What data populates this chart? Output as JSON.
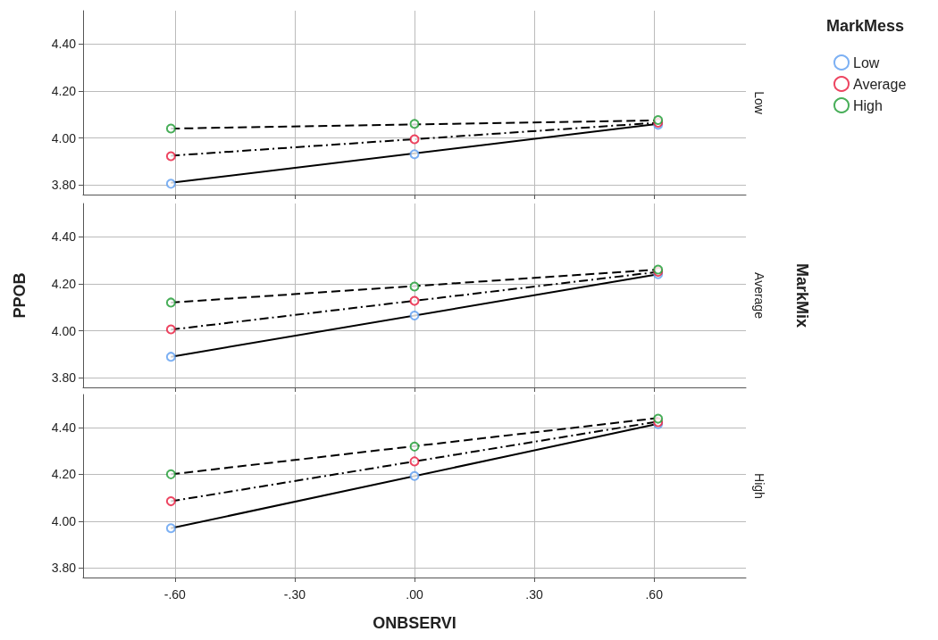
{
  "chart_data": [
    {
      "type": "scatter",
      "legend_title": "MarkMess",
      "legend": "top right",
      "grid": true,
      "marker": "circle",
      "tick_labels": "y",
      "annotations": [
        "Low"
      ],
      "xlim": [
        -0.83,
        0.83
      ],
      "xticks": [
        {
          "value": -0.6,
          "label": null
        },
        {
          "value": -0.3,
          "label": null
        },
        {
          "value": 0,
          "label": null
        },
        {
          "value": 0.3,
          "label": null
        },
        {
          "value": 0.6,
          "label": null
        }
      ],
      "ylim": [
        3.76,
        4.54
      ],
      "yticks": [
        {
          "value": 3.8,
          "label": "3.80"
        },
        {
          "value": 4.0,
          "label": "4.00"
        },
        {
          "value": 4.2,
          "label": "4.20"
        },
        {
          "value": 4.4,
          "label": "4.40"
        }
      ],
      "series": [
        {
          "type": "line",
          "marker": "none",
          "color": "#000000",
          "line_style": "solid",
          "x": [
            -0.61,
            0.61
          ],
          "values": [
            3.81,
            4.06
          ]
        },
        {
          "type": "line",
          "marker": "none",
          "color": "#000000",
          "line_style": "dotted",
          "x": [
            -0.61,
            0.61
          ],
          "values": [
            3.925,
            4.065
          ]
        },
        {
          "type": "line",
          "marker": "none",
          "color": "#000000",
          "line_style": "dashed",
          "x": [
            -0.61,
            0.61
          ],
          "values": [
            4.04,
            4.075
          ]
        },
        {
          "name": "Low",
          "color": "#5b9cf0",
          "x": [
            -0.61,
            0,
            0.61
          ],
          "values": [
            3.806,
            3.931,
            4.056
          ]
        },
        {
          "name": "Average",
          "color": "#e8173a",
          "x": [
            -0.61,
            0,
            0.61
          ],
          "values": [
            3.923,
            3.995,
            4.065
          ]
        },
        {
          "name": "High",
          "color": "#1a9a30",
          "x": [
            -0.61,
            0,
            0.61
          ],
          "values": [
            4.04,
            4.06,
            4.076
          ]
        }
      ]
    },
    {
      "type": "scatter",
      "ylabel": "PPOB",
      "grid": true,
      "marker": "circle",
      "tick_labels": "y",
      "annotations": [
        "Average",
        "MarkMix"
      ],
      "xlim": [
        -0.83,
        0.83
      ],
      "xticks": [
        {
          "value": -0.6,
          "label": null
        },
        {
          "value": -0.3,
          "label": null
        },
        {
          "value": 0,
          "label": null
        },
        {
          "value": 0.3,
          "label": null
        },
        {
          "value": 0.6,
          "label": null
        }
      ],
      "ylim": [
        3.76,
        4.54
      ],
      "yticks": [
        {
          "value": 3.8,
          "label": "3.80"
        },
        {
          "value": 4.0,
          "label": "4.00"
        },
        {
          "value": 4.2,
          "label": "4.20"
        },
        {
          "value": 4.4,
          "label": "4.40"
        }
      ],
      "series": [
        {
          "type": "line",
          "marker": "none",
          "color": "#000000",
          "line_style": "solid",
          "x": [
            -0.61,
            0.61
          ],
          "values": [
            3.89,
            4.24
          ]
        },
        {
          "type": "line",
          "marker": "none",
          "color": "#000000",
          "line_style": "dotted",
          "x": [
            -0.61,
            0.61
          ],
          "values": [
            4.005,
            4.25
          ]
        },
        {
          "type": "line",
          "marker": "none",
          "color": "#000000",
          "line_style": "dashed",
          "x": [
            -0.61,
            0.61
          ],
          "values": [
            4.12,
            4.26
          ]
        },
        {
          "color": "#5b9cf0",
          "x": [
            -0.61,
            0,
            0.61
          ],
          "values": [
            3.89,
            4.065,
            4.24
          ]
        },
        {
          "color": "#e8173a",
          "x": [
            -0.61,
            0,
            0.61
          ],
          "values": [
            4.006,
            4.127,
            4.25
          ]
        },
        {
          "color": "#1a9a30",
          "x": [
            -0.61,
            0,
            0.61
          ],
          "values": [
            4.12,
            4.188,
            4.26
          ]
        }
      ]
    },
    {
      "type": "scatter",
      "xlabel": "ONBSERVI",
      "grid": true,
      "marker": "circle",
      "annotations": [
        "High"
      ],
      "xlim": [
        -0.83,
        0.83
      ],
      "xticks": [
        {
          "value": -0.6,
          "label": "-.60"
        },
        {
          "value": -0.3,
          "label": "-.30"
        },
        {
          "value": 0,
          "label": ".00"
        },
        {
          "value": 0.3,
          "label": ".30"
        },
        {
          "value": 0.6,
          "label": ".60"
        }
      ],
      "ylim": [
        3.76,
        4.54
      ],
      "yticks": [
        {
          "value": 3.8,
          "label": "3.80"
        },
        {
          "value": 4.0,
          "label": "4.00"
        },
        {
          "value": 4.2,
          "label": "4.20"
        },
        {
          "value": 4.4,
          "label": "4.40"
        }
      ],
      "series": [
        {
          "type": "line",
          "marker": "none",
          "color": "#000000",
          "line_style": "solid",
          "x": [
            -0.61,
            0.61
          ],
          "values": [
            3.97,
            4.415
          ]
        },
        {
          "type": "line",
          "marker": "none",
          "color": "#000000",
          "line_style": "dotted",
          "x": [
            -0.61,
            0.61
          ],
          "values": [
            4.085,
            4.425
          ]
        },
        {
          "type": "line",
          "marker": "none",
          "color": "#000000",
          "line_style": "dashed",
          "x": [
            -0.61,
            0.61
          ],
          "values": [
            4.2,
            4.44
          ]
        },
        {
          "color": "#5b9cf0",
          "x": [
            -0.61,
            0,
            0.61
          ],
          "values": [
            3.97,
            4.193,
            4.414
          ]
        },
        {
          "color": "#e8173a",
          "x": [
            -0.61,
            0,
            0.61
          ],
          "values": [
            4.085,
            4.255,
            4.422
          ]
        },
        {
          "color": "#1a9a30",
          "x": [
            -0.61,
            0,
            0.61
          ],
          "values": [
            4.2,
            4.318,
            4.437
          ]
        }
      ]
    }
  ]
}
